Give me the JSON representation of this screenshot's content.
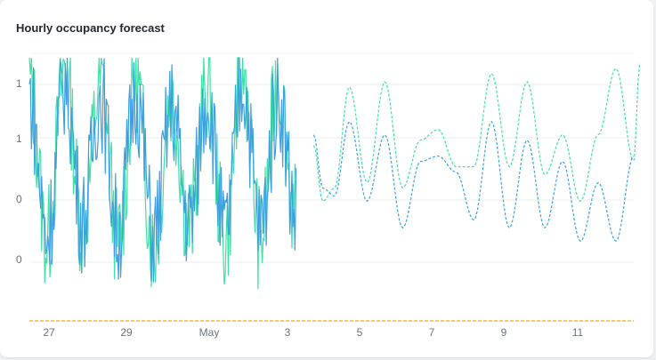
{
  "title": "Hourly occupancy forecast",
  "colors": {
    "green": "#3ee0a6",
    "blue": "#3d9fe0",
    "orange": "#f5b731",
    "grid": "#eeeeee"
  },
  "chart_data": {
    "type": "line",
    "title": "Hourly occupancy forecast",
    "xlabel": "",
    "ylabel": "",
    "x_range": [
      "Apr 26",
      "May 13"
    ],
    "x_ticks": [
      {
        "date": "Apr 27",
        "label": "27"
      },
      {
        "date": "Apr 29",
        "label": "29"
      },
      {
        "date": "May 1",
        "label": "May"
      },
      {
        "date": "May 3",
        "label": "3"
      },
      {
        "date": "May 5",
        "label": "5"
      },
      {
        "date": "May 7",
        "label": "7"
      },
      {
        "date": "May 9",
        "label": "9"
      },
      {
        "date": "May 11",
        "label": "11"
      }
    ],
    "y_ticks": [
      "1",
      "1",
      "0",
      "0"
    ],
    "grid": "horizontal",
    "legend": "none",
    "forecast_start": "May 4",
    "series": [
      {
        "style": "solid (observed)",
        "color": "#3ee0a6",
        "points": [
          [
            "Apr 26",
            0.9
          ],
          [
            "Apr 26 12h",
            0.3
          ],
          [
            "Apr 27",
            0.95
          ],
          [
            "Apr 27 12h",
            0.35
          ],
          [
            "Apr 28",
            0.9
          ],
          [
            "Apr 28 12h",
            0.3
          ],
          [
            "Apr 29",
            0.92
          ],
          [
            "Apr 29 12h",
            0.28
          ],
          [
            "Apr 30",
            0.85
          ],
          [
            "Apr 30 12h",
            0.35
          ],
          [
            "May 1",
            0.88
          ],
          [
            "May 1 12h",
            0.3
          ],
          [
            "May 2",
            0.95
          ],
          [
            "May 2 12h",
            0.3
          ],
          [
            "May 3",
            0.9
          ],
          [
            "May 3 12h",
            0.38
          ]
        ]
      },
      {
        "style": "solid (observed)",
        "color": "#3d9fe0",
        "points": [
          [
            "Apr 26",
            0.85
          ],
          [
            "Apr 26 12h",
            0.32
          ],
          [
            "Apr 27",
            0.9
          ],
          [
            "Apr 27 12h",
            0.38
          ],
          [
            "Apr 28",
            0.85
          ],
          [
            "Apr 28 12h",
            0.33
          ],
          [
            "Apr 29",
            0.86
          ],
          [
            "Apr 29 12h",
            0.32
          ],
          [
            "Apr 30",
            0.8
          ],
          [
            "Apr 30 12h",
            0.37
          ],
          [
            "May 1",
            0.85
          ],
          [
            "May 1 12h",
            0.32
          ],
          [
            "May 2",
            0.9
          ],
          [
            "May 2 12h",
            0.35
          ],
          [
            "May 3",
            0.85
          ],
          [
            "May 3 12h",
            0.4
          ]
        ]
      },
      {
        "style": "dashed (forecast)",
        "color": "#3ee0a6",
        "points": [
          [
            "May 4",
            0.66
          ],
          [
            "May 4 6h",
            0.45
          ],
          [
            "May 4 14h",
            0.5
          ],
          [
            "May 5",
            0.88
          ],
          [
            "May 5 12h",
            0.52
          ],
          [
            "May 6",
            0.9
          ],
          [
            "May 6 12h",
            0.5
          ],
          [
            "May 7",
            0.68
          ],
          [
            "May 7 12h",
            0.72
          ],
          [
            "May 8",
            0.58
          ],
          [
            "May 8 12h",
            0.58
          ],
          [
            "May 9",
            0.93
          ],
          [
            "May 9 12h",
            0.58
          ],
          [
            "May 10",
            0.9
          ],
          [
            "May 10 12h",
            0.55
          ],
          [
            "May 11",
            0.7
          ],
          [
            "May 11 12h",
            0.45
          ],
          [
            "May 12",
            0.7
          ],
          [
            "May 12 12h",
            0.95
          ],
          [
            "May 13",
            0.6
          ],
          [
            "May 13 4h",
            0.97
          ]
        ]
      },
      {
        "style": "dashed (forecast)",
        "color": "#3d9fe0",
        "points": [
          [
            "May 4",
            0.7
          ],
          [
            "May 4 6h",
            0.5
          ],
          [
            "May 4 14h",
            0.47
          ],
          [
            "May 5",
            0.75
          ],
          [
            "May 5 12h",
            0.45
          ],
          [
            "May 6",
            0.7
          ],
          [
            "May 6 12h",
            0.35
          ],
          [
            "May 7",
            0.6
          ],
          [
            "May 7 12h",
            0.62
          ],
          [
            "May 8",
            0.56
          ],
          [
            "May 8 12h",
            0.38
          ],
          [
            "May 9",
            0.75
          ],
          [
            "May 9 12h",
            0.35
          ],
          [
            "May 10",
            0.68
          ],
          [
            "May 10 12h",
            0.35
          ],
          [
            "May 11",
            0.6
          ],
          [
            "May 11 12h",
            0.3
          ],
          [
            "May 12",
            0.52
          ],
          [
            "May 12 12h",
            0.3
          ],
          [
            "May 13",
            0.62
          ]
        ]
      },
      {
        "style": "dashed (baseline)",
        "color": "#f5b731",
        "points": [
          [
            "Apr 26",
            0.0
          ],
          [
            "May 13",
            0.0
          ]
        ]
      }
    ]
  }
}
